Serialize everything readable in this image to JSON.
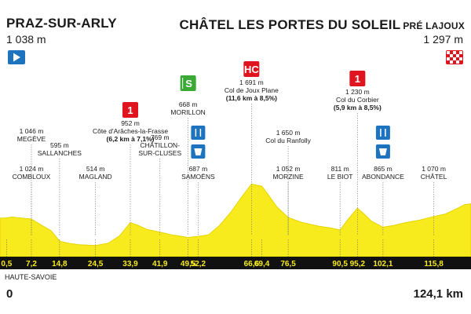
{
  "start": {
    "name": "PRAZ-SUR-ARLY",
    "altitude": "1 038 m"
  },
  "finish": {
    "name": "CHÂTEL LES PORTES DU SOLEIL",
    "name_small": "PRÉ LAJOUX",
    "altitude": "1 297 m"
  },
  "region": "HAUTE-SAVOIE",
  "distance": {
    "start": "0",
    "total": "124,1 km"
  },
  "colors": {
    "profile": "#f7ea1d",
    "profile_edge": "#e8d400",
    "climb": "#e0141e",
    "sprint": "#3aa935",
    "feed": "#1e73be",
    "kmbar": "#111111",
    "kmtext": "#f7ea1d"
  },
  "km_ticks": [
    {
      "km": 0.5,
      "label": "0,5"
    },
    {
      "km": 7.2,
      "label": "7,2"
    },
    {
      "km": 14.8,
      "label": "14,8"
    },
    {
      "km": 24.5,
      "label": "24,5"
    },
    {
      "km": 33.9,
      "label": "33,9"
    },
    {
      "km": 41.9,
      "label": "41,9"
    },
    {
      "km": 49.5,
      "label": "49,5"
    },
    {
      "km": 52.2,
      "label": "52,2"
    },
    {
      "km": 66.6,
      "label": "66,6"
    },
    {
      "km": 69.4,
      "label": "69,4"
    },
    {
      "km": 76.5,
      "label": "76,5"
    },
    {
      "km": 90.5,
      "label": "90,5"
    },
    {
      "km": 95.2,
      "label": "95,2"
    },
    {
      "km": 102.1,
      "label": "102,1"
    },
    {
      "km": 115.8,
      "label": "115,8"
    }
  ],
  "upper_places": [
    {
      "km": 7.2,
      "alt": "1 046 m",
      "name": "MEGÈVE"
    },
    {
      "km": 14.8,
      "alt": "595 m",
      "name": "SALLANCHES"
    },
    {
      "km": 33.9,
      "alt": "952 m",
      "name": "Côte d'Arâches-la-Frasse",
      "detail": "(6,2 km à 7,1%)",
      "climb_cat": "1"
    },
    {
      "km": 41.9,
      "alt": "769 m",
      "name": "CHÂTILLON-",
      "name2": "SUR-CLUSES"
    },
    {
      "km": 49.5,
      "alt": "668 m",
      "name": "MORILLON"
    },
    {
      "km": 66.6,
      "alt": "1 691 m",
      "name": "Col de Joux Plane",
      "detail": "(11,6 km à 8,5%)",
      "climb_cat": "HC"
    },
    {
      "km": 76.5,
      "alt": "1 650 m",
      "name": "Col du Ranfolly"
    },
    {
      "km": 95.2,
      "alt": "1 230 m",
      "name": "Col du Corbier",
      "detail": "(5,9 km à 8,5%)",
      "climb_cat": "1"
    }
  ],
  "lower_places": [
    {
      "km": 7.2,
      "alt": "1 024 m",
      "name": "COMBLOUX"
    },
    {
      "km": 24.5,
      "alt": "514 m",
      "name": "MAGLAND"
    },
    {
      "km": 52.2,
      "alt": "687 m",
      "name": "SAMOËNS"
    },
    {
      "km": 76.5,
      "alt": "1 052 m",
      "name": "MORZINE"
    },
    {
      "km": 90.5,
      "alt": "811 m",
      "name": "LE BIOT"
    },
    {
      "km": 102.1,
      "alt": "865 m",
      "name": "ABONDANCE"
    },
    {
      "km": 115.8,
      "alt": "1 070 m",
      "name": "CHÂTEL"
    }
  ],
  "sprint": {
    "km": 49.5,
    "label": "S"
  },
  "feed_zones": [
    {
      "km": 52.2
    },
    {
      "km": 102.1
    }
  ]
}
